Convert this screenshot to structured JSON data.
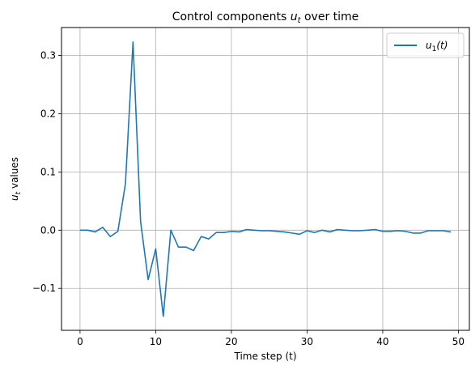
{
  "chart_data": {
    "type": "line",
    "title_prefix": "Control components ",
    "title_math": "u",
    "title_sub": "t",
    "title_suffix": " over time",
    "xlabel": "Time step (t)",
    "ylabel_math": "u",
    "ylabel_sub": "t",
    "ylabel_suffix": " values",
    "xlim": [
      -2.45,
      51.45
    ],
    "ylim": [
      -0.172,
      0.348
    ],
    "x_ticks": [
      0,
      10,
      20,
      30,
      40,
      50
    ],
    "x_tick_labels": [
      "0",
      "10",
      "20",
      "30",
      "40",
      "50"
    ],
    "y_ticks": [
      -0.1,
      0.0,
      0.1,
      0.2,
      0.3
    ],
    "y_tick_labels": [
      "−0.1",
      "0.0",
      "0.1",
      "0.2",
      "0.3"
    ],
    "grid": true,
    "legend_placement": "top-right",
    "series": [
      {
        "name": "u",
        "name_sub": "1",
        "name_suffix": "(t)",
        "color": "#1f77b4",
        "x": [
          0,
          1,
          2,
          3,
          4,
          5,
          6,
          7,
          8,
          9,
          10,
          11,
          12,
          13,
          14,
          15,
          16,
          17,
          18,
          19,
          20,
          21,
          22,
          23,
          24,
          25,
          26,
          27,
          28,
          29,
          30,
          31,
          32,
          33,
          34,
          35,
          36,
          37,
          38,
          39,
          40,
          41,
          42,
          43,
          44,
          45,
          46,
          47,
          48,
          49
        ],
        "values": [
          0.0,
          0.0,
          -0.003,
          0.005,
          -0.011,
          -0.002,
          0.08,
          0.323,
          0.015,
          -0.085,
          -0.032,
          -0.148,
          0.0,
          -0.029,
          -0.029,
          -0.035,
          -0.011,
          -0.015,
          -0.004,
          -0.004,
          -0.002,
          -0.003,
          0.001,
          0.0,
          -0.001,
          -0.001,
          -0.002,
          -0.003,
          -0.005,
          -0.007,
          -0.001,
          -0.004,
          0.0,
          -0.003,
          0.001,
          0.0,
          -0.001,
          -0.001,
          0.0,
          0.001,
          -0.002,
          -0.002,
          -0.001,
          -0.002,
          -0.005,
          -0.005,
          -0.001,
          -0.001,
          -0.001,
          -0.003
        ]
      }
    ]
  }
}
